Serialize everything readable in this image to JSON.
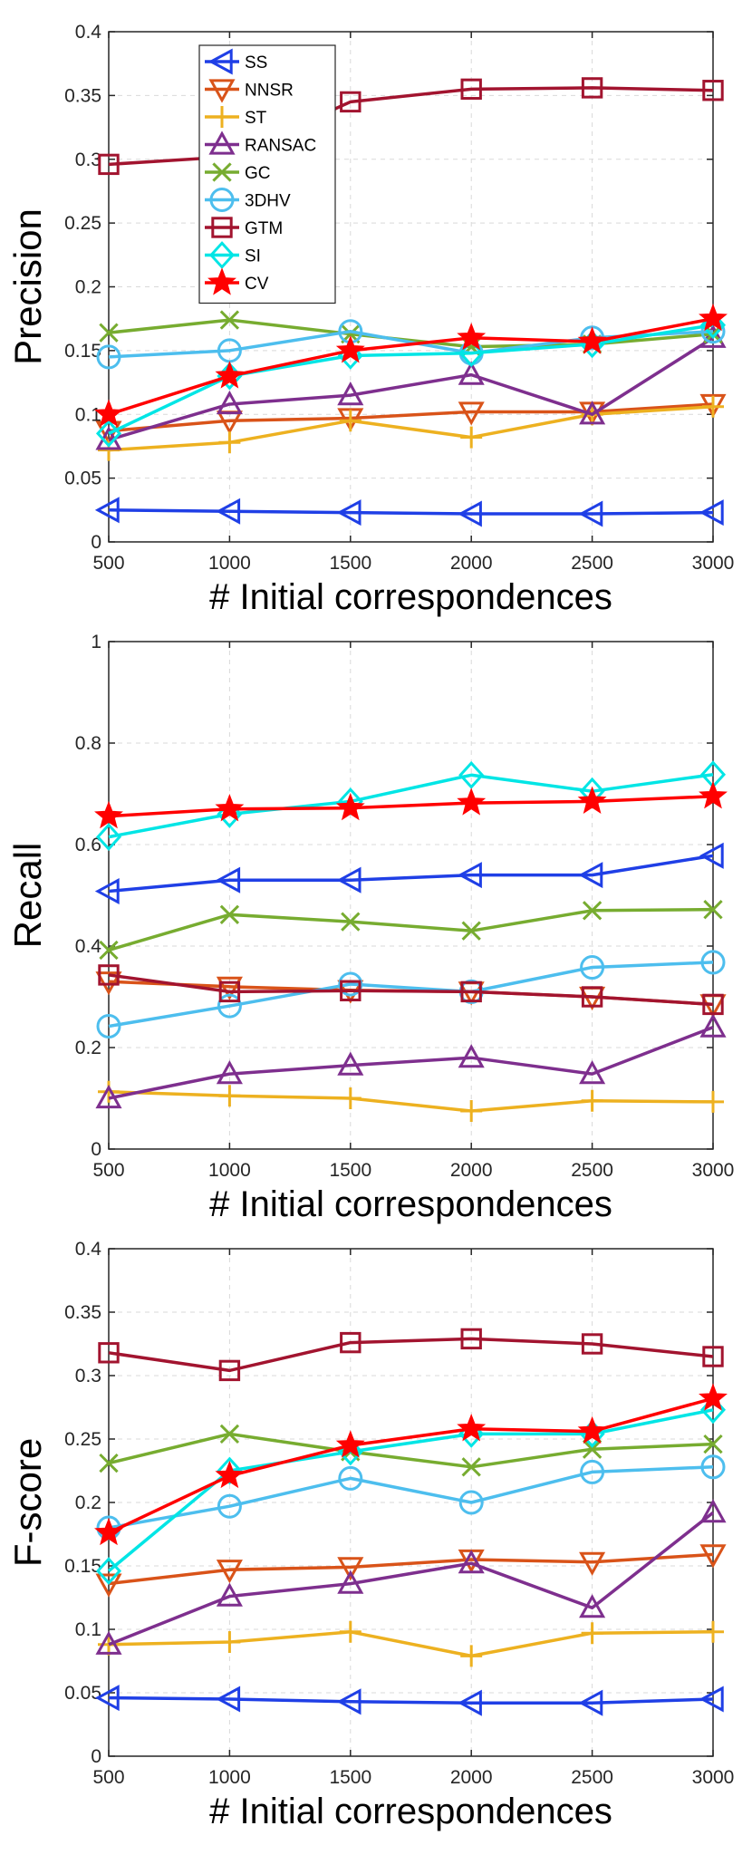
{
  "chart_data": [
    {
      "type": "line",
      "title": "",
      "xlabel": "# Initial correspondences",
      "ylabel": "Precision",
      "x": [
        500,
        1000,
        1500,
        2000,
        2500,
        3000
      ],
      "xlim": [
        500,
        3000
      ],
      "ylim": [
        0,
        0.4
      ],
      "xticks": [
        "500",
        "1000",
        "1500",
        "2000",
        "2500",
        "3000"
      ],
      "yticks": [
        "0",
        "0.05",
        "0.1",
        "0.15",
        "0.2",
        "0.25",
        "0.3",
        "0.35",
        "0.4"
      ],
      "yticks_values": [
        0,
        0.05,
        0.1,
        0.15,
        0.2,
        0.25,
        0.3,
        0.35,
        0.4
      ],
      "grid": true,
      "legend": "top-left",
      "series": [
        {
          "name": "SS",
          "color": "#1f3fe6",
          "marker": "triangle-left",
          "values": [
            0.025,
            0.024,
            0.023,
            0.022,
            0.022,
            0.023
          ]
        },
        {
          "name": "NNSR",
          "color": "#d95319",
          "marker": "triangle-down",
          "values": [
            0.087,
            0.095,
            0.097,
            0.102,
            0.102,
            0.108
          ]
        },
        {
          "name": "ST",
          "color": "#edb120",
          "marker": "plus",
          "values": [
            0.072,
            0.078,
            0.095,
            0.082,
            0.1,
            0.106
          ]
        },
        {
          "name": "RANSAC",
          "color": "#7e2f8e",
          "marker": "triangle-up",
          "values": [
            0.08,
            0.108,
            0.115,
            0.131,
            0.1,
            0.16
          ]
        },
        {
          "name": "GC",
          "color": "#77ac30",
          "marker": "x",
          "values": [
            0.164,
            0.174,
            0.163,
            0.153,
            0.155,
            0.163
          ]
        },
        {
          "name": "3DHV",
          "color": "#4dbeee",
          "marker": "circle",
          "values": [
            0.145,
            0.15,
            0.165,
            0.148,
            0.16,
            0.165
          ]
        },
        {
          "name": "GTM",
          "color": "#a2142f",
          "marker": "square",
          "values": [
            0.296,
            0.302,
            0.345,
            0.355,
            0.356,
            0.354
          ]
        },
        {
          "name": "SI",
          "color": "#00e5e5",
          "marker": "diamond",
          "values": [
            0.085,
            0.13,
            0.146,
            0.148,
            0.155,
            0.17
          ]
        },
        {
          "name": "CV",
          "color": "#ff0000",
          "marker": "star",
          "values": [
            0.1,
            0.13,
            0.15,
            0.16,
            0.157,
            0.175
          ]
        }
      ]
    },
    {
      "type": "line",
      "title": "",
      "xlabel": "# Initial correspondences",
      "ylabel": "Recall",
      "x": [
        500,
        1000,
        1500,
        2000,
        2500,
        3000
      ],
      "xlim": [
        500,
        3000
      ],
      "ylim": [
        0,
        1
      ],
      "xticks": [
        "500",
        "1000",
        "1500",
        "2000",
        "2500",
        "3000"
      ],
      "yticks": [
        "0",
        "0.2",
        "0.4",
        "0.6",
        "0.8",
        "1"
      ],
      "yticks_values": [
        0,
        0.2,
        0.4,
        0.6,
        0.8,
        1
      ],
      "grid": true,
      "legend": "none",
      "series": [
        {
          "name": "SS",
          "color": "#1f3fe6",
          "marker": "triangle-left",
          "values": [
            0.508,
            0.53,
            0.53,
            0.54,
            0.54,
            0.578
          ]
        },
        {
          "name": "NNSR",
          "color": "#d95319",
          "marker": "triangle-down",
          "values": [
            0.33,
            0.32,
            0.313,
            0.31,
            0.3,
            0.285
          ]
        },
        {
          "name": "ST",
          "color": "#edb120",
          "marker": "plus",
          "values": [
            0.113,
            0.105,
            0.1,
            0.075,
            0.095,
            0.093
          ]
        },
        {
          "name": "RANSAC",
          "color": "#7e2f8e",
          "marker": "triangle-up",
          "values": [
            0.1,
            0.148,
            0.165,
            0.18,
            0.148,
            0.24
          ]
        },
        {
          "name": "GC",
          "color": "#77ac30",
          "marker": "x",
          "values": [
            0.392,
            0.462,
            0.448,
            0.43,
            0.47,
            0.472
          ]
        },
        {
          "name": "3DHV",
          "color": "#4dbeee",
          "marker": "circle",
          "values": [
            0.242,
            0.282,
            0.325,
            0.31,
            0.358,
            0.368
          ]
        },
        {
          "name": "GTM",
          "color": "#a2142f",
          "marker": "square",
          "values": [
            0.343,
            0.31,
            0.312,
            0.31,
            0.3,
            0.285
          ]
        },
        {
          "name": "SI",
          "color": "#00e5e5",
          "marker": "diamond",
          "values": [
            0.615,
            0.66,
            0.685,
            0.737,
            0.705,
            0.738
          ]
        },
        {
          "name": "CV",
          "color": "#ff0000",
          "marker": "star",
          "values": [
            0.656,
            0.67,
            0.672,
            0.682,
            0.685,
            0.695
          ]
        }
      ]
    },
    {
      "type": "line",
      "title": "",
      "xlabel": "# Initial correspondences",
      "ylabel": "F-score",
      "x": [
        500,
        1000,
        1500,
        2000,
        2500,
        3000
      ],
      "xlim": [
        500,
        3000
      ],
      "ylim": [
        0,
        0.4
      ],
      "xticks": [
        "500",
        "1000",
        "1500",
        "2000",
        "2500",
        "3000"
      ],
      "yticks": [
        "0",
        "0.05",
        "0.1",
        "0.15",
        "0.2",
        "0.25",
        "0.3",
        "0.35",
        "0.4"
      ],
      "yticks_values": [
        0,
        0.05,
        0.1,
        0.15,
        0.2,
        0.25,
        0.3,
        0.35,
        0.4
      ],
      "grid": true,
      "legend": "none",
      "series": [
        {
          "name": "SS",
          "color": "#1f3fe6",
          "marker": "triangle-left",
          "values": [
            0.046,
            0.045,
            0.043,
            0.042,
            0.042,
            0.045
          ]
        },
        {
          "name": "NNSR",
          "color": "#d95319",
          "marker": "triangle-down",
          "values": [
            0.136,
            0.147,
            0.149,
            0.155,
            0.153,
            0.159
          ]
        },
        {
          "name": "ST",
          "color": "#edb120",
          "marker": "plus",
          "values": [
            0.088,
            0.09,
            0.098,
            0.079,
            0.097,
            0.098
          ]
        },
        {
          "name": "RANSAC",
          "color": "#7e2f8e",
          "marker": "triangle-up",
          "values": [
            0.088,
            0.126,
            0.136,
            0.152,
            0.117,
            0.192
          ]
        },
        {
          "name": "GC",
          "color": "#77ac30",
          "marker": "x",
          "values": [
            0.231,
            0.254,
            0.24,
            0.228,
            0.242,
            0.246
          ]
        },
        {
          "name": "3DHV",
          "color": "#4dbeee",
          "marker": "circle",
          "values": [
            0.18,
            0.197,
            0.219,
            0.2,
            0.224,
            0.228
          ]
        },
        {
          "name": "GTM",
          "color": "#a2142f",
          "marker": "square",
          "values": [
            0.318,
            0.304,
            0.326,
            0.329,
            0.325,
            0.315
          ]
        },
        {
          "name": "SI",
          "color": "#00e5e5",
          "marker": "diamond",
          "values": [
            0.146,
            0.225,
            0.24,
            0.254,
            0.254,
            0.273
          ]
        },
        {
          "name": "CV",
          "color": "#ff0000",
          "marker": "star",
          "values": [
            0.176,
            0.221,
            0.245,
            0.258,
            0.256,
            0.282
          ]
        }
      ]
    }
  ]
}
